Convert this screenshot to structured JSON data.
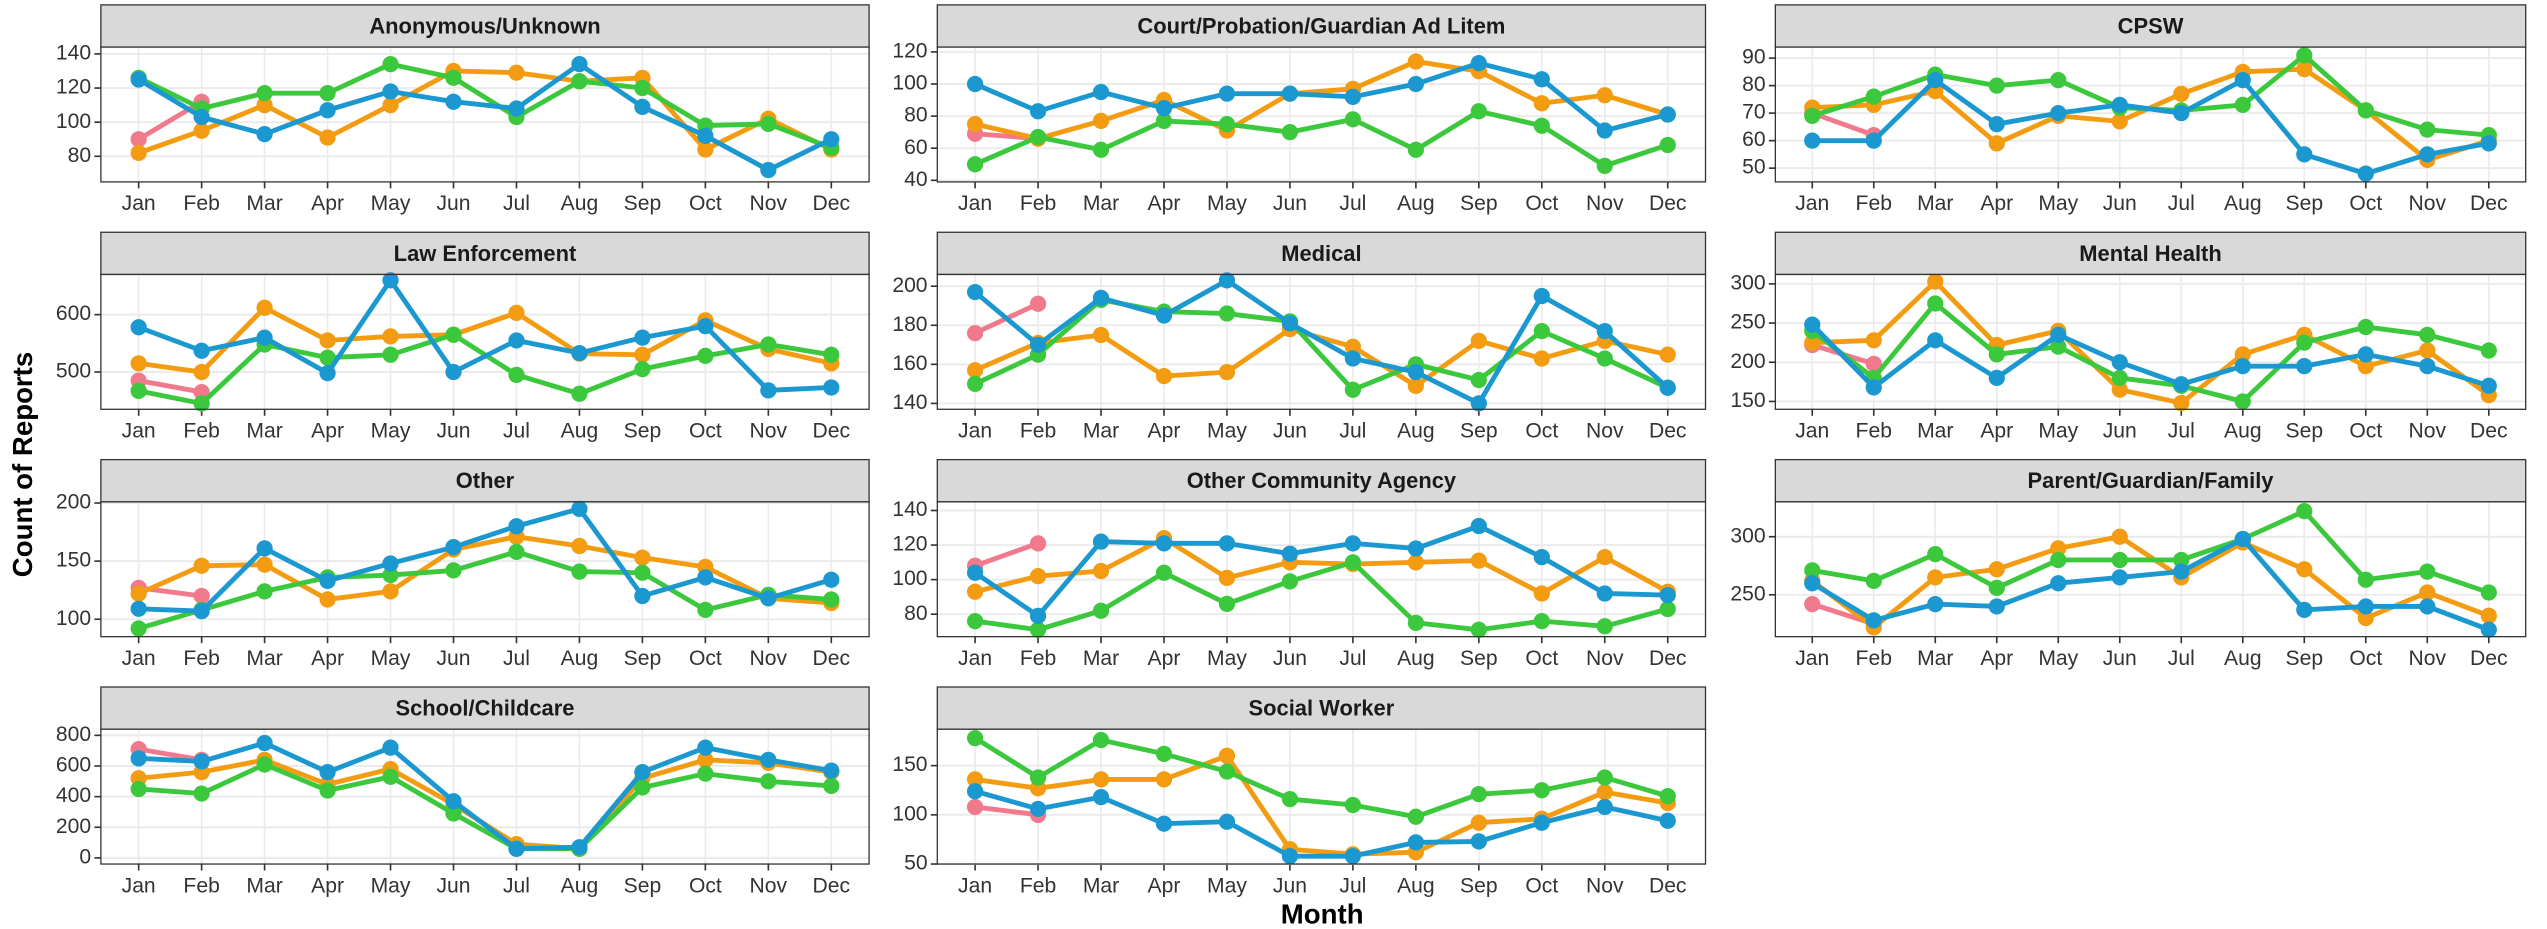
{
  "y_label": "Count of Reports",
  "x_label": "Month",
  "chart_data": [
    {
      "type": "line",
      "title": "Anonymous/Unknown",
      "categories": [
        "Jan",
        "Feb",
        "Mar",
        "Apr",
        "May",
        "Jun",
        "Jul",
        "Aug",
        "Sep",
        "Oct",
        "Nov",
        "Dec"
      ],
      "ylim": [
        65,
        144
      ],
      "yticks": [
        80,
        100,
        120,
        140
      ],
      "grid": true,
      "series": [
        {
          "color": "#f07a8c",
          "values": [
            90,
            112,
            null,
            null,
            null,
            null,
            null,
            null,
            null,
            null,
            null,
            null
          ]
        },
        {
          "color": "#f39c12",
          "values": [
            82,
            95,
            110,
            91,
            110,
            130,
            129,
            124,
            126,
            84,
            102,
            84
          ]
        },
        {
          "color": "#3cc83c",
          "values": [
            126,
            108,
            117,
            117,
            134,
            126,
            103,
            124,
            120,
            98,
            99,
            85
          ]
        },
        {
          "color": "#1b98d0",
          "values": [
            125,
            103,
            93,
            107,
            118,
            112,
            108,
            134,
            109,
            92,
            72,
            90
          ]
        }
      ]
    },
    {
      "type": "line",
      "title": "Court/Probation/Guardian Ad Litem",
      "categories": [
        "Jan",
        "Feb",
        "Mar",
        "Apr",
        "May",
        "Jun",
        "Jul",
        "Aug",
        "Sep",
        "Oct",
        "Nov",
        "Dec"
      ],
      "ylim": [
        39,
        123
      ],
      "yticks": [
        40,
        60,
        80,
        100,
        120
      ],
      "grid": true,
      "series": [
        {
          "color": "#f07a8c",
          "values": [
            69,
            66,
            null,
            null,
            null,
            null,
            null,
            null,
            null,
            null,
            null,
            null
          ]
        },
        {
          "color": "#f39c12",
          "values": [
            75,
            66,
            77,
            90,
            71,
            94,
            97,
            114,
            108,
            88,
            93,
            81
          ]
        },
        {
          "color": "#3cc83c",
          "values": [
            50,
            67,
            59,
            77,
            75,
            70,
            78,
            59,
            83,
            74,
            49,
            62
          ]
        },
        {
          "color": "#1b98d0",
          "values": [
            100,
            83,
            95,
            85,
            94,
            94,
            92,
            100,
            113,
            103,
            71,
            81
          ]
        }
      ]
    },
    {
      "type": "line",
      "title": "CPSW",
      "categories": [
        "Jan",
        "Feb",
        "Mar",
        "Apr",
        "May",
        "Jun",
        "Jul",
        "Aug",
        "Sep",
        "Oct",
        "Nov",
        "Dec"
      ],
      "ylim": [
        45,
        94
      ],
      "yticks": [
        50,
        60,
        70,
        80,
        90
      ],
      "grid": true,
      "series": [
        {
          "color": "#f07a8c",
          "values": [
            70,
            62,
            null,
            null,
            null,
            null,
            null,
            null,
            null,
            null,
            null,
            null
          ]
        },
        {
          "color": "#f39c12",
          "values": [
            72,
            73,
            78,
            59,
            69,
            67,
            77,
            85,
            86,
            71,
            53,
            60
          ]
        },
        {
          "color": "#3cc83c",
          "values": [
            69,
            76,
            84,
            80,
            82,
            72,
            71,
            73,
            91,
            71,
            64,
            62
          ]
        },
        {
          "color": "#1b98d0",
          "values": [
            60,
            60,
            82,
            66,
            70,
            73,
            70,
            82,
            55,
            48,
            55,
            59
          ]
        }
      ]
    },
    {
      "type": "line",
      "title": "Law Enforcement",
      "categories": [
        "Jan",
        "Feb",
        "Mar",
        "Apr",
        "May",
        "Jun",
        "Jul",
        "Aug",
        "Sep",
        "Oct",
        "Nov",
        "Dec"
      ],
      "ylim": [
        435,
        670
      ],
      "yticks": [
        500,
        600
      ],
      "grid": true,
      "series": [
        {
          "color": "#f07a8c",
          "values": [
            485,
            465,
            null,
            null,
            null,
            null,
            null,
            null,
            null,
            null,
            null,
            null
          ]
        },
        {
          "color": "#f39c12",
          "values": [
            515,
            500,
            612,
            555,
            562,
            565,
            603,
            532,
            530,
            590,
            540,
            515
          ]
        },
        {
          "color": "#3cc83c",
          "values": [
            467,
            445,
            548,
            525,
            530,
            565,
            495,
            462,
            505,
            528,
            548,
            530
          ]
        },
        {
          "color": "#1b98d0",
          "values": [
            578,
            537,
            560,
            498,
            660,
            500,
            555,
            533,
            560,
            580,
            468,
            473
          ]
        }
      ]
    },
    {
      "type": "line",
      "title": "Medical",
      "categories": [
        "Jan",
        "Feb",
        "Mar",
        "Apr",
        "May",
        "Jun",
        "Jul",
        "Aug",
        "Sep",
        "Oct",
        "Nov",
        "Dec"
      ],
      "ylim": [
        137,
        206
      ],
      "yticks": [
        140,
        160,
        180,
        200
      ],
      "grid": true,
      "series": [
        {
          "color": "#f07a8c",
          "values": [
            176,
            191,
            null,
            null,
            null,
            null,
            null,
            null,
            null,
            null,
            null,
            null
          ]
        },
        {
          "color": "#f39c12",
          "values": [
            157,
            171,
            175,
            154,
            156,
            178,
            169,
            149,
            172,
            163,
            172,
            165
          ]
        },
        {
          "color": "#3cc83c",
          "values": [
            150,
            165,
            193,
            187,
            186,
            182,
            147,
            160,
            152,
            177,
            163,
            148
          ]
        },
        {
          "color": "#1b98d0",
          "values": [
            197,
            170,
            194,
            185,
            203,
            181,
            163,
            156,
            140,
            195,
            177,
            148
          ]
        }
      ]
    },
    {
      "type": "line",
      "title": "Mental Health",
      "categories": [
        "Jan",
        "Feb",
        "Mar",
        "Apr",
        "May",
        "Jun",
        "Jul",
        "Aug",
        "Sep",
        "Oct",
        "Nov",
        "Dec"
      ],
      "ylim": [
        140,
        312
      ],
      "yticks": [
        150,
        200,
        250,
        300
      ],
      "grid": true,
      "series": [
        {
          "color": "#f07a8c",
          "values": [
            222,
            198,
            null,
            null,
            null,
            null,
            null,
            null,
            null,
            null,
            null,
            null
          ]
        },
        {
          "color": "#f39c12",
          "values": [
            225,
            228,
            303,
            222,
            240,
            165,
            148,
            210,
            235,
            195,
            215,
            158
          ]
        },
        {
          "color": "#3cc83c",
          "values": [
            240,
            180,
            275,
            210,
            220,
            180,
            170,
            150,
            225,
            245,
            235,
            215
          ]
        },
        {
          "color": "#1b98d0",
          "values": [
            248,
            168,
            228,
            180,
            235,
            200,
            172,
            195,
            195,
            210,
            195,
            170
          ]
        }
      ]
    },
    {
      "type": "line",
      "title": "Other",
      "categories": [
        "Jan",
        "Feb",
        "Mar",
        "Apr",
        "May",
        "Jun",
        "Jul",
        "Aug",
        "Sep",
        "Oct",
        "Nov",
        "Dec"
      ],
      "ylim": [
        85,
        201
      ],
      "yticks": [
        100,
        150,
        200
      ],
      "grid": true,
      "series": [
        {
          "color": "#f07a8c",
          "values": [
            127,
            120,
            null,
            null,
            null,
            null,
            null,
            null,
            null,
            null,
            null,
            null
          ]
        },
        {
          "color": "#f39c12",
          "values": [
            122,
            146,
            147,
            117,
            124,
            160,
            171,
            163,
            153,
            145,
            118,
            114
          ]
        },
        {
          "color": "#3cc83c",
          "values": [
            92,
            108,
            124,
            136,
            138,
            142,
            158,
            141,
            140,
            108,
            121,
            117
          ]
        },
        {
          "color": "#1b98d0",
          "values": [
            109,
            107,
            161,
            133,
            148,
            162,
            180,
            195,
            120,
            136,
            118,
            134
          ]
        }
      ]
    },
    {
      "type": "line",
      "title": "Other Community Agency",
      "categories": [
        "Jan",
        "Feb",
        "Mar",
        "Apr",
        "May",
        "Jun",
        "Jul",
        "Aug",
        "Sep",
        "Oct",
        "Nov",
        "Dec"
      ],
      "ylim": [
        67,
        145
      ],
      "yticks": [
        80,
        100,
        120,
        140
      ],
      "grid": true,
      "series": [
        {
          "color": "#f07a8c",
          "values": [
            108,
            121,
            null,
            null,
            null,
            null,
            null,
            null,
            null,
            null,
            null,
            null
          ]
        },
        {
          "color": "#f39c12",
          "values": [
            93,
            102,
            105,
            124,
            101,
            110,
            109,
            110,
            111,
            92,
            113,
            93
          ]
        },
        {
          "color": "#3cc83c",
          "values": [
            76,
            71,
            82,
            104,
            86,
            99,
            110,
            75,
            71,
            76,
            73,
            83
          ]
        },
        {
          "color": "#1b98d0",
          "values": [
            104,
            79,
            122,
            121,
            121,
            115,
            121,
            118,
            131,
            113,
            92,
            91
          ]
        }
      ]
    },
    {
      "type": "line",
      "title": "Parent/Guardian/Family",
      "categories": [
        "Jan",
        "Feb",
        "Mar",
        "Apr",
        "May",
        "Jun",
        "Jul",
        "Aug",
        "Sep",
        "Oct",
        "Nov",
        "Dec"
      ],
      "ylim": [
        214,
        330
      ],
      "yticks": [
        250,
        300
      ],
      "grid": true,
      "series": [
        {
          "color": "#f07a8c",
          "values": [
            242,
            225,
            null,
            null,
            null,
            null,
            null,
            null,
            null,
            null,
            null,
            null
          ]
        },
        {
          "color": "#f39c12",
          "values": [
            262,
            222,
            265,
            272,
            290,
            300,
            265,
            295,
            272,
            230,
            252,
            232
          ]
        },
        {
          "color": "#3cc83c",
          "values": [
            271,
            262,
            285,
            256,
            280,
            280,
            280,
            298,
            322,
            263,
            270,
            252
          ]
        },
        {
          "color": "#1b98d0",
          "values": [
            260,
            228,
            242,
            240,
            260,
            265,
            270,
            298,
            237,
            240,
            240,
            220
          ]
        }
      ]
    },
    {
      "type": "line",
      "title": "School/Childcare",
      "categories": [
        "Jan",
        "Feb",
        "Mar",
        "Apr",
        "May",
        "Jun",
        "Jul",
        "Aug",
        "Sep",
        "Oct",
        "Nov",
        "Dec"
      ],
      "ylim": [
        -40,
        840
      ],
      "yticks": [
        0,
        200,
        400,
        600,
        800
      ],
      "grid": true,
      "series": [
        {
          "color": "#f07a8c",
          "values": [
            710,
            640,
            null,
            null,
            null,
            null,
            null,
            null,
            null,
            null,
            null,
            null
          ]
        },
        {
          "color": "#f39c12",
          "values": [
            520,
            560,
            640,
            480,
            580,
            350,
            90,
            60,
            520,
            640,
            620,
            560
          ]
        },
        {
          "color": "#3cc83c",
          "values": [
            450,
            420,
            610,
            440,
            530,
            290,
            60,
            60,
            460,
            550,
            500,
            470
          ]
        },
        {
          "color": "#1b98d0",
          "values": [
            650,
            630,
            750,
            560,
            720,
            370,
            60,
            70,
            560,
            720,
            640,
            570
          ]
        }
      ]
    },
    {
      "type": "line",
      "title": "Social Worker",
      "categories": [
        "Jan",
        "Feb",
        "Mar",
        "Apr",
        "May",
        "Jun",
        "Jul",
        "Aug",
        "Sep",
        "Oct",
        "Nov",
        "Dec"
      ],
      "ylim": [
        50,
        187
      ],
      "yticks": [
        50,
        100,
        150
      ],
      "grid": true,
      "series": [
        {
          "color": "#f07a8c",
          "values": [
            108,
            100,
            null,
            null,
            null,
            null,
            null,
            null,
            null,
            null,
            null,
            null
          ]
        },
        {
          "color": "#f39c12",
          "values": [
            136,
            127,
            136,
            136,
            160,
            65,
            60,
            62,
            92,
            96,
            123,
            112
          ]
        },
        {
          "color": "#3cc83c",
          "values": [
            178,
            138,
            176,
            162,
            144,
            116,
            110,
            98,
            121,
            125,
            138,
            119
          ]
        },
        {
          "color": "#1b98d0",
          "values": [
            124,
            106,
            118,
            91,
            93,
            58,
            58,
            72,
            73,
            92,
            108,
            94
          ]
        }
      ]
    }
  ]
}
